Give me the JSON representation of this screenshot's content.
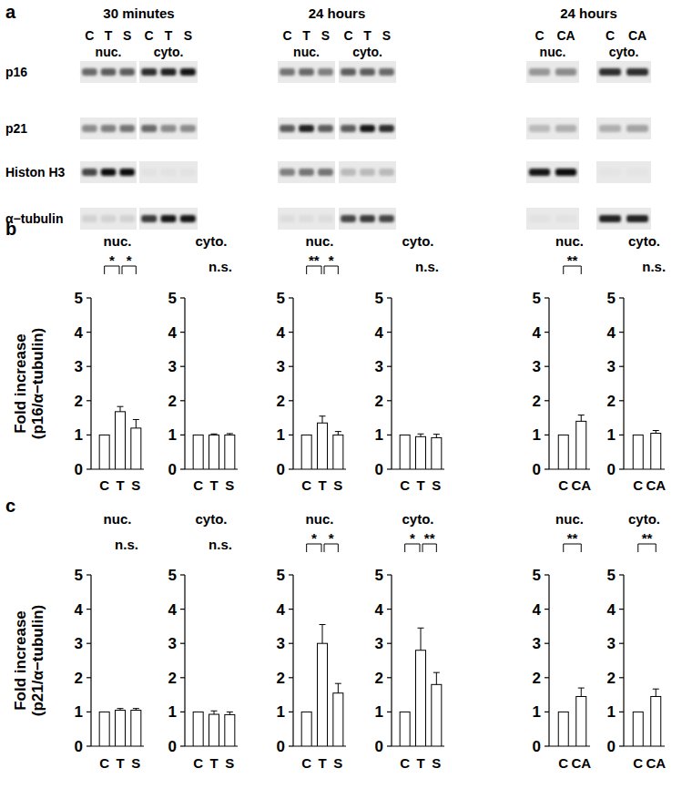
{
  "blot": {
    "panel_label": "a",
    "rows": [
      "p16",
      "p21",
      "Histon H3",
      "α−tubulin"
    ],
    "groups": [
      {
        "title": "30 minutes",
        "fractions": [
          {
            "name": "nuc.",
            "lanes": [
              "C",
              "T",
              "S"
            ],
            "bands": [
              [
                0.55,
                0.6,
                0.6
              ],
              [
                0.4,
                0.45,
                0.5
              ],
              [
                0.7,
                0.95,
                0.95
              ],
              [
                0.1,
                0.1,
                0.1
              ]
            ]
          },
          {
            "name": "cyto.",
            "lanes": [
              "C",
              "T",
              "S"
            ],
            "bands": [
              [
                0.8,
                0.85,
                0.9
              ],
              [
                0.55,
                0.4,
                0.4
              ],
              [
                0.03,
                0.03,
                0.03
              ],
              [
                0.75,
                0.9,
                0.9
              ]
            ]
          }
        ]
      },
      {
        "title": "24 hours",
        "fractions": [
          {
            "name": "nuc.",
            "lanes": [
              "C",
              "T",
              "S"
            ],
            "bands": [
              [
                0.5,
                0.55,
                0.45
              ],
              [
                0.6,
                0.85,
                0.6
              ],
              [
                0.45,
                0.5,
                0.5
              ],
              [
                0.05,
                0.05,
                0.05
              ]
            ]
          },
          {
            "name": "cyto.",
            "lanes": [
              "C",
              "T",
              "S"
            ],
            "bands": [
              [
                0.6,
                0.6,
                0.55
              ],
              [
                0.6,
                0.9,
                0.8
              ],
              [
                0.2,
                0.2,
                0.2
              ],
              [
                0.7,
                0.75,
                0.7
              ]
            ]
          }
        ]
      },
      {
        "title": "24 hours",
        "fractions": [
          {
            "name": "nuc.",
            "lanes": [
              "C",
              "CA"
            ],
            "bands": [
              [
                0.35,
                0.4
              ],
              [
                0.2,
                0.25
              ],
              [
                0.9,
                0.95
              ],
              [
                0.03,
                0.03
              ]
            ]
          },
          {
            "name": "cyto.",
            "lanes": [
              "C",
              "CA"
            ],
            "bands": [
              [
                0.8,
                0.8
              ],
              [
                0.25,
                0.3
              ],
              [
                0.02,
                0.02
              ],
              [
                0.85,
                0.85
              ]
            ]
          }
        ]
      }
    ]
  },
  "chart_data": [
    {
      "type": "bar",
      "panel_label": "b",
      "y_label": [
        "Fold increase",
        "(p16/α−tubulin)"
      ],
      "title": "nuc.",
      "categories": [
        "C",
        "T",
        "S"
      ],
      "values": [
        1,
        1.68,
        1.2
      ],
      "errors": [
        null,
        0.15,
        0.25
      ],
      "color": "#ffffff",
      "ylim": [
        0,
        5
      ],
      "yticks": [
        0,
        1,
        2,
        3,
        4,
        5
      ],
      "significance": [
        {
          "between": [
            "C",
            "T"
          ],
          "label": "*"
        },
        {
          "between": [
            "T",
            "S"
          ],
          "label": "*"
        }
      ]
    },
    {
      "type": "bar",
      "title": "cyto.",
      "categories": [
        "C",
        "T",
        "S"
      ],
      "values": [
        1,
        1.0,
        1.0
      ],
      "errors": [
        null,
        0.03,
        0.04
      ],
      "color": "#ffffff",
      "ylim": [
        0,
        5
      ],
      "yticks": [
        0,
        1,
        2,
        3,
        4,
        5
      ],
      "annotation": "n.s."
    },
    {
      "type": "bar",
      "title": "nuc.",
      "categories": [
        "C",
        "T",
        "S"
      ],
      "values": [
        1,
        1.35,
        1.0
      ],
      "errors": [
        null,
        0.2,
        0.1
      ],
      "color": "#ffffff",
      "ylim": [
        0,
        5
      ],
      "yticks": [
        0,
        1,
        2,
        3,
        4,
        5
      ],
      "significance": [
        {
          "between": [
            "C",
            "T"
          ],
          "label": "**"
        },
        {
          "between": [
            "T",
            "S"
          ],
          "label": "*"
        }
      ]
    },
    {
      "type": "bar",
      "title": "cyto.",
      "categories": [
        "C",
        "T",
        "S"
      ],
      "values": [
        1,
        0.95,
        0.92
      ],
      "errors": [
        null,
        0.08,
        0.1
      ],
      "color": "#ffffff",
      "ylim": [
        0,
        5
      ],
      "yticks": [
        0,
        1,
        2,
        3,
        4,
        5
      ],
      "annotation": "n.s."
    },
    {
      "type": "bar",
      "title": "nuc.",
      "categories": [
        "C",
        "CA"
      ],
      "values": [
        1,
        1.4
      ],
      "errors": [
        null,
        0.18
      ],
      "color": "#ffffff",
      "ylim": [
        0,
        5
      ],
      "yticks": [
        0,
        1,
        2,
        3,
        4,
        5
      ],
      "significance": [
        {
          "between": [
            "C",
            "CA"
          ],
          "label": "**"
        }
      ]
    },
    {
      "type": "bar",
      "title": "cyto.",
      "categories": [
        "C",
        "CA"
      ],
      "values": [
        1,
        1.05
      ],
      "errors": [
        null,
        0.08
      ],
      "color": "#ffffff",
      "ylim": [
        0,
        5
      ],
      "yticks": [
        0,
        1,
        2,
        3,
        4,
        5
      ],
      "annotation": "n.s."
    },
    {
      "type": "bar",
      "panel_label": "c",
      "y_label": [
        "Fold increase",
        "(p21/α−tubulin)"
      ],
      "title": "nuc.",
      "categories": [
        "C",
        "T",
        "S"
      ],
      "values": [
        1,
        1.05,
        1.05
      ],
      "errors": [
        null,
        0.05,
        0.05
      ],
      "color": "#ffffff",
      "ylim": [
        0,
        5
      ],
      "yticks": [
        0,
        1,
        2,
        3,
        4,
        5
      ],
      "annotation": "n.s."
    },
    {
      "type": "bar",
      "title": "cyto.",
      "categories": [
        "C",
        "T",
        "S"
      ],
      "values": [
        1,
        0.93,
        0.92
      ],
      "errors": [
        null,
        0.1,
        0.08
      ],
      "color": "#ffffff",
      "ylim": [
        0,
        5
      ],
      "yticks": [
        0,
        1,
        2,
        3,
        4,
        5
      ],
      "annotation": "n.s."
    },
    {
      "type": "bar",
      "title": "nuc.",
      "categories": [
        "C",
        "T",
        "S"
      ],
      "values": [
        1,
        3.0,
        1.55
      ],
      "errors": [
        null,
        0.55,
        0.28
      ],
      "color": "#ffffff",
      "ylim": [
        0,
        5
      ],
      "yticks": [
        0,
        1,
        2,
        3,
        4,
        5
      ],
      "significance": [
        {
          "between": [
            "C",
            "T"
          ],
          "label": "*"
        },
        {
          "between": [
            "T",
            "S"
          ],
          "label": "*"
        }
      ]
    },
    {
      "type": "bar",
      "title": "cyto.",
      "categories": [
        "C",
        "T",
        "S"
      ],
      "values": [
        1,
        2.8,
        1.8
      ],
      "errors": [
        null,
        0.65,
        0.35
      ],
      "color": "#ffffff",
      "ylim": [
        0,
        5
      ],
      "yticks": [
        0,
        1,
        2,
        3,
        4,
        5
      ],
      "significance": [
        {
          "between": [
            "C",
            "T"
          ],
          "label": "*"
        },
        {
          "between": [
            "T",
            "S"
          ],
          "label": "**"
        }
      ]
    },
    {
      "type": "bar",
      "title": "nuc.",
      "categories": [
        "C",
        "CA"
      ],
      "values": [
        1,
        1.45
      ],
      "errors": [
        null,
        0.25
      ],
      "color": "#ffffff",
      "ylim": [
        0,
        5
      ],
      "yticks": [
        0,
        1,
        2,
        3,
        4,
        5
      ],
      "significance": [
        {
          "between": [
            "C",
            "CA"
          ],
          "label": "**"
        }
      ]
    },
    {
      "type": "bar",
      "title": "cyto.",
      "categories": [
        "C",
        "CA"
      ],
      "values": [
        1,
        1.45
      ],
      "errors": [
        null,
        0.22
      ],
      "color": "#ffffff",
      "ylim": [
        0,
        5
      ],
      "yticks": [
        0,
        1,
        2,
        3,
        4,
        5
      ],
      "significance": [
        {
          "between": [
            "C",
            "CA"
          ],
          "label": "**"
        }
      ]
    }
  ]
}
